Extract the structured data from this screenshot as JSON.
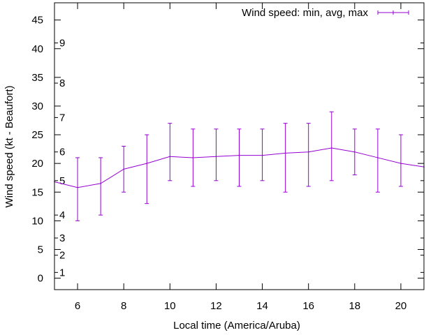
{
  "chart_data": {
    "type": "line",
    "title": "",
    "xlabel": "Local time (America/Aruba)",
    "ylabel": "Wind speed (kt - Beaufort)",
    "xlim": [
      5,
      21
    ],
    "ylim": [
      -2,
      48
    ],
    "xticks": [
      6,
      8,
      10,
      12,
      14,
      16,
      18,
      20
    ],
    "xtick_labels": [
      "6",
      "8",
      "10",
      "12",
      "14",
      "16",
      "18",
      "20"
    ],
    "yticks": [
      0,
      5,
      10,
      15,
      20,
      25,
      30,
      35,
      40,
      45
    ],
    "ytick_labels": [
      "0",
      "5",
      "10",
      "15",
      "20",
      "25",
      "30",
      "35",
      "40",
      "45"
    ],
    "beaufort_scale": [
      {
        "label": "1",
        "kt": 1
      },
      {
        "label": "2",
        "kt": 4
      },
      {
        "label": "3",
        "kt": 7
      },
      {
        "label": "4",
        "kt": 11
      },
      {
        "label": "5",
        "kt": 17
      },
      {
        "label": "6",
        "kt": 22
      },
      {
        "label": "7",
        "kt": 28
      },
      {
        "label": "8",
        "kt": 34
      },
      {
        "label": "9",
        "kt": 41
      }
    ],
    "legend": {
      "label": "Wind speed: min, avg, max",
      "position": "top-right"
    },
    "color": "#9400d3",
    "series": [
      {
        "name": "Wind speed: min, avg, max",
        "x": [
          5,
          6,
          7,
          8,
          9,
          10,
          11,
          12,
          13,
          14,
          15,
          16,
          17,
          18,
          19,
          20,
          21
        ],
        "avg": [
          16.8,
          15.8,
          16.5,
          19,
          20,
          21.2,
          21,
          21.2,
          21.4,
          21.4,
          21.8,
          22,
          22.7,
          22,
          21,
          20,
          19.4
        ],
        "min": [
          null,
          10,
          11,
          15,
          13,
          17,
          16,
          17,
          16,
          17,
          15,
          16,
          17,
          18,
          15,
          16,
          null
        ],
        "max": [
          null,
          21,
          21,
          23,
          25,
          27,
          26,
          26,
          26,
          26,
          27,
          27,
          29,
          26,
          26,
          25,
          null
        ]
      }
    ]
  }
}
